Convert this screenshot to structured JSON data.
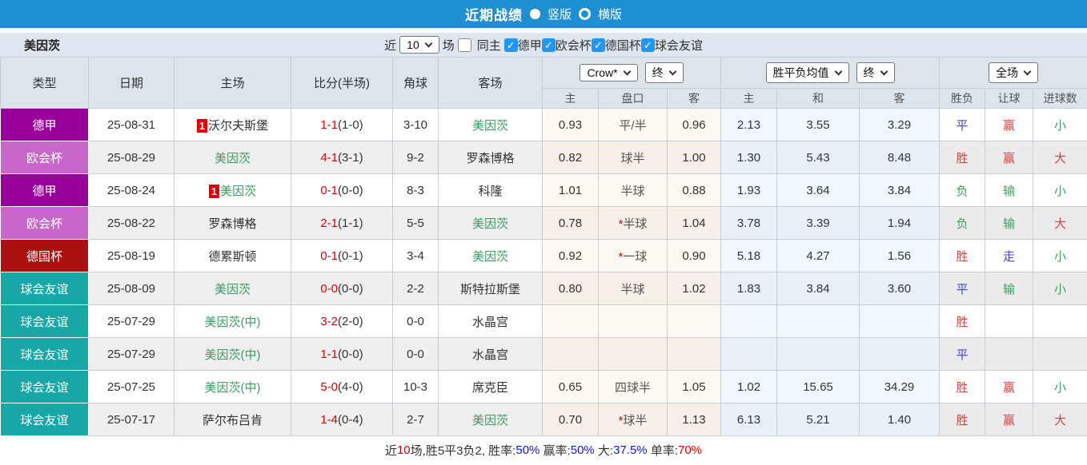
{
  "top_bar": {
    "title": "近期战绩",
    "layout_options": [
      {
        "label": "竖版",
        "selected": true
      },
      {
        "label": "横版",
        "selected": false
      }
    ]
  },
  "filter_bar": {
    "team_name": "美因茨",
    "recent_label": "近",
    "recent_count": "10",
    "matches_label": "场",
    "same_home": {
      "label": "同主",
      "checked": false
    },
    "league_filters": [
      {
        "label": "德甲",
        "checked": true
      },
      {
        "label": "欧会杯",
        "checked": true
      },
      {
        "label": "德国杯",
        "checked": true
      },
      {
        "label": "球会友谊",
        "checked": true
      }
    ]
  },
  "table": {
    "column_headers": [
      "类型",
      "日期",
      "主场",
      "比分(半场)",
      "角球",
      "客场"
    ],
    "sub_headers": [
      "主",
      "盘口",
      "客",
      "主",
      "和",
      "客",
      "胜负",
      "让球",
      "进球数"
    ],
    "selects": {
      "odds_company": "Crow*",
      "odds_company_time": "终",
      "europe_odds": "胜平负均值",
      "europe_odds_time": "终",
      "result_scope": "全场"
    },
    "rows": [
      {
        "type": "德甲",
        "type_bg": "#990099",
        "date": "25-08-31",
        "home_badge": "1",
        "home": "沃尔夫斯堡",
        "home_cls": "",
        "score": "1-1",
        "half": "(1-0)",
        "corner": "3-10",
        "away": "美因茨",
        "away_cls": "green",
        "ah_home": "0.93",
        "ah_star": "",
        "ah_line": "平/半",
        "ah_away": "0.96",
        "eu_home": "2.13",
        "eu_draw": "3.55",
        "eu_away": "3.29",
        "res": "平",
        "res_cls": "blue",
        "let_res": "赢",
        "let_cls": "red",
        "goal": "小",
        "goal_cls": "green"
      },
      {
        "type": "欧会杯",
        "type_bg": "#C966C9",
        "date": "25-08-29",
        "home_badge": "",
        "home": "美因茨",
        "home_cls": "green",
        "score": "4-1",
        "half": "(3-1)",
        "corner": "9-2",
        "away": "罗森博格",
        "away_cls": "",
        "ah_home": "0.82",
        "ah_star": "",
        "ah_line": "球半",
        "ah_away": "1.00",
        "eu_home": "1.30",
        "eu_draw": "5.43",
        "eu_away": "8.48",
        "res": "胜",
        "res_cls": "red",
        "let_res": "赢",
        "let_cls": "red",
        "goal": "大",
        "goal_cls": "red"
      },
      {
        "type": "德甲",
        "type_bg": "#990099",
        "date": "25-08-24",
        "home_badge": "1",
        "home": "美因茨",
        "home_cls": "green",
        "score": "0-1",
        "half": "(0-0)",
        "corner": "8-3",
        "away": "科隆",
        "away_cls": "",
        "ah_home": "1.01",
        "ah_star": "",
        "ah_line": "半球",
        "ah_away": "0.88",
        "eu_home": "1.93",
        "eu_draw": "3.64",
        "eu_away": "3.84",
        "res": "负",
        "res_cls": "green",
        "let_res": "输",
        "let_cls": "green",
        "goal": "小",
        "goal_cls": "green"
      },
      {
        "type": "欧会杯",
        "type_bg": "#C966C9",
        "date": "25-08-22",
        "home_badge": "",
        "home": "罗森博格",
        "home_cls": "",
        "score": "2-1",
        "half": "(1-1)",
        "corner": "5-5",
        "away": "美因茨",
        "away_cls": "green",
        "ah_home": "0.78",
        "ah_star": "*",
        "ah_line": "半球",
        "ah_away": "1.04",
        "eu_home": "3.78",
        "eu_draw": "3.39",
        "eu_away": "1.94",
        "res": "负",
        "res_cls": "green",
        "let_res": "输",
        "let_cls": "green",
        "goal": "大",
        "goal_cls": "red"
      },
      {
        "type": "德国杯",
        "type_bg": "#AA1212",
        "date": "25-08-19",
        "home_badge": "",
        "home": "德累斯顿",
        "home_cls": "",
        "score": "0-1",
        "half": "(0-1)",
        "corner": "3-4",
        "away": "美因茨",
        "away_cls": "green",
        "ah_home": "0.92",
        "ah_star": "*",
        "ah_line": "一球",
        "ah_away": "0.90",
        "eu_home": "5.18",
        "eu_draw": "4.27",
        "eu_away": "1.56",
        "res": "胜",
        "res_cls": "red",
        "let_res": "走",
        "let_cls": "blue",
        "goal": "小",
        "goal_cls": "green"
      },
      {
        "type": "球会友谊",
        "type_bg": "#17A7A7",
        "date": "25-08-09",
        "home_badge": "",
        "home": "美因茨",
        "home_cls": "green",
        "score": "0-0",
        "half": "(0-0)",
        "corner": "2-2",
        "away": "斯特拉斯堡",
        "away_cls": "",
        "ah_home": "0.80",
        "ah_star": "",
        "ah_line": "半球",
        "ah_away": "1.02",
        "eu_home": "1.83",
        "eu_draw": "3.84",
        "eu_away": "3.60",
        "res": "平",
        "res_cls": "blue",
        "let_res": "输",
        "let_cls": "green",
        "goal": "小",
        "goal_cls": "green"
      },
      {
        "type": "球会友谊",
        "type_bg": "#17A7A7",
        "date": "25-07-29",
        "home_badge": "",
        "home": "美因茨(中)",
        "home_cls": "green",
        "score": "3-2",
        "half": "(2-0)",
        "corner": "0-0",
        "away": "水晶宫",
        "away_cls": "",
        "ah_home": "",
        "ah_star": "",
        "ah_line": "",
        "ah_away": "",
        "eu_home": "",
        "eu_draw": "",
        "eu_away": "",
        "res": "胜",
        "res_cls": "red",
        "let_res": "",
        "let_cls": "",
        "goal": "",
        "goal_cls": ""
      },
      {
        "type": "球会友谊",
        "type_bg": "#17A7A7",
        "date": "25-07-29",
        "home_badge": "",
        "home": "美因茨(中)",
        "home_cls": "green",
        "score": "1-1",
        "half": "(0-0)",
        "corner": "0-0",
        "away": "水晶宫",
        "away_cls": "",
        "ah_home": "",
        "ah_star": "",
        "ah_line": "",
        "ah_away": "",
        "eu_home": "",
        "eu_draw": "",
        "eu_away": "",
        "res": "平",
        "res_cls": "blue",
        "let_res": "",
        "let_cls": "",
        "goal": "",
        "goal_cls": ""
      },
      {
        "type": "球会友谊",
        "type_bg": "#17A7A7",
        "date": "25-07-25",
        "home_badge": "",
        "home": "美因茨(中)",
        "home_cls": "green",
        "score": "5-0",
        "half": "(4-0)",
        "corner": "10-3",
        "away": "席克臣",
        "away_cls": "",
        "ah_home": "0.65",
        "ah_star": "",
        "ah_line": "四球半",
        "ah_away": "1.05",
        "eu_home": "1.02",
        "eu_draw": "15.65",
        "eu_away": "34.29",
        "res": "胜",
        "res_cls": "red",
        "let_res": "赢",
        "let_cls": "red",
        "goal": "小",
        "goal_cls": "green"
      },
      {
        "type": "球会友谊",
        "type_bg": "#17A7A7",
        "date": "25-07-17",
        "home_badge": "",
        "home": "萨尔布吕肯",
        "home_cls": "",
        "score": "1-4",
        "half": "(0-4)",
        "corner": "2-7",
        "away": "美因茨",
        "away_cls": "green",
        "ah_home": "0.70",
        "ah_star": "*",
        "ah_line": "球半",
        "ah_away": "1.13",
        "eu_home": "6.13",
        "eu_draw": "5.21",
        "eu_away": "1.40",
        "res": "胜",
        "res_cls": "red",
        "let_res": "赢",
        "let_cls": "red",
        "goal": "大",
        "goal_cls": "red"
      }
    ]
  },
  "footer": {
    "segments": [
      {
        "text": "近",
        "cls": ""
      },
      {
        "text": "10",
        "cls": "red"
      },
      {
        "text": "场,胜5平3负2, 胜率:",
        "cls": ""
      },
      {
        "text": "50%",
        "cls": "blue"
      },
      {
        "text": " 赢率:",
        "cls": ""
      },
      {
        "text": "50%",
        "cls": "blue"
      },
      {
        "text": " 大:",
        "cls": ""
      },
      {
        "text": "37.5%",
        "cls": "blue"
      },
      {
        "text": " 单率:",
        "cls": ""
      },
      {
        "text": "70%",
        "cls": "red"
      }
    ]
  },
  "icons": {
    "checkmark": "✓"
  },
  "colors": {
    "top_bar_blue": "#1E90D2",
    "filter_bg": "#DEE6F0",
    "header_bg": "#DCE4EC",
    "type_bundesliga": "#990099",
    "type_conference": "#C966C9",
    "type_german_cup": "#AA1212",
    "type_friendly": "#17A7A7",
    "checkbox_blue": "#2196F3",
    "team_green": "#3E9B63",
    "score_red": "#E00000"
  }
}
